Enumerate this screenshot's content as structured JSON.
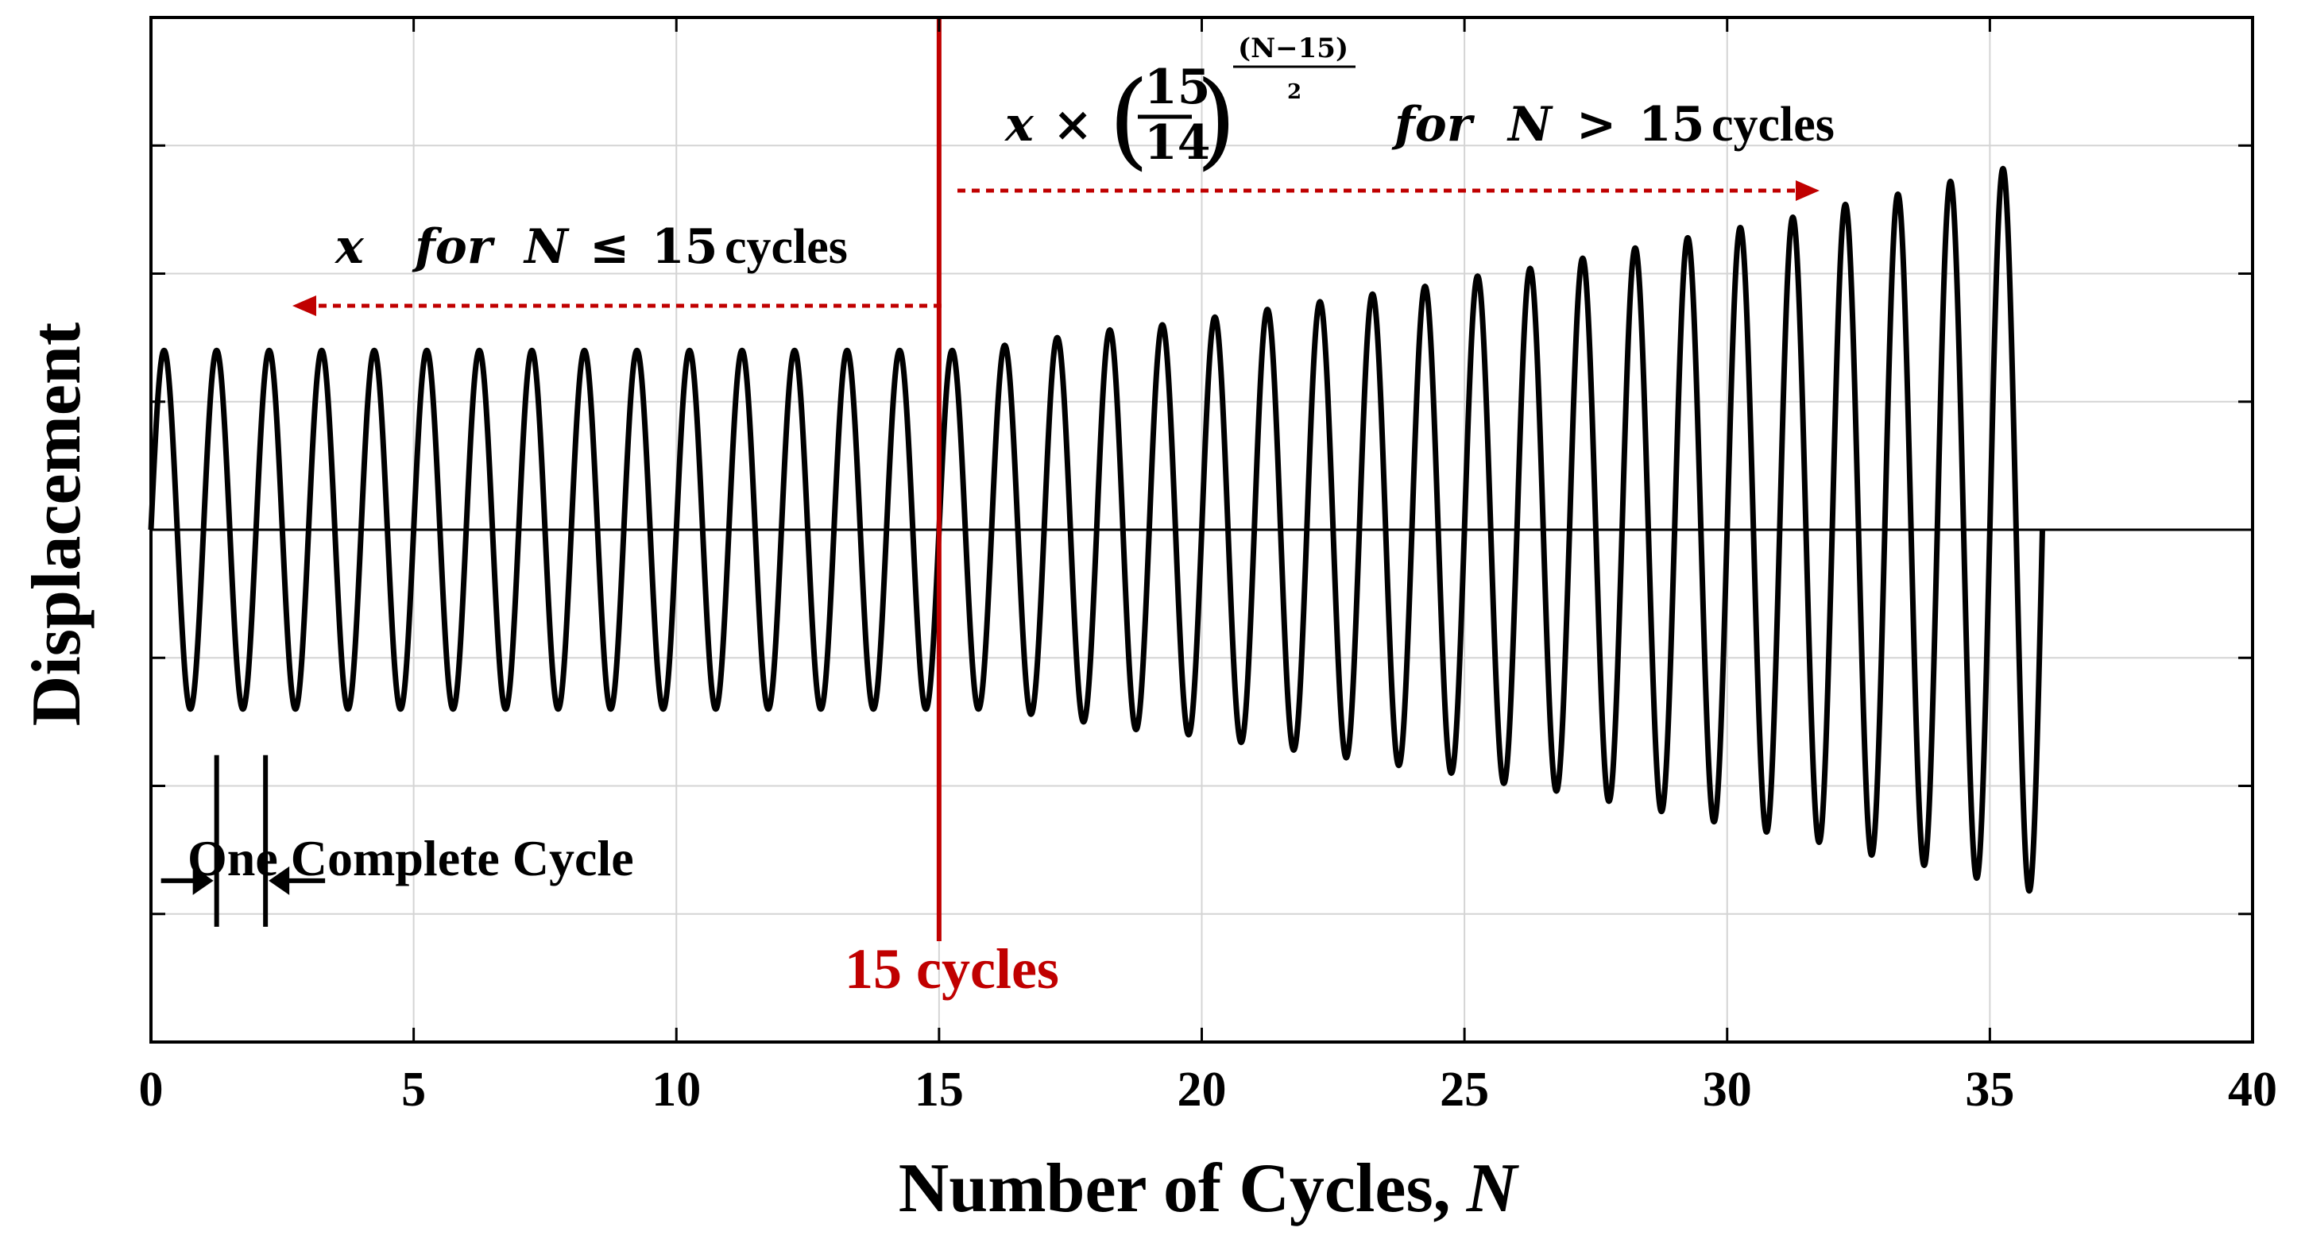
{
  "chart_data": {
    "type": "line",
    "xlabel": "Number of Cycles,",
    "xlabel_var": "N",
    "ylabel": "Displacement",
    "xlim": [
      0,
      40
    ],
    "ylim": [
      -2,
      2
    ],
    "x_ticks": [
      0,
      5,
      10,
      15,
      20,
      25,
      30,
      35,
      40
    ],
    "x_tick_labels": [
      "0",
      "5",
      "10",
      "15",
      "20",
      "25",
      "30",
      "35",
      "40"
    ],
    "y_grid_values": [
      -1.5,
      -1.0,
      -0.5,
      0.0,
      0.5,
      1.0,
      1.5
    ],
    "y_tick_labels_shown": false,
    "grid": true,
    "series": [
      {
        "name": "Displacement",
        "color": "#000000",
        "formula_constant_phase": "x for N <= 15 cycles",
        "formula_growth_phase": "x * (15/14)^((N-15)/2) for N > 15 cycles",
        "base_amplitude": 0.7,
        "growth_ratio": 1.0714,
        "n_cycles": 36,
        "switch_cycle": 15,
        "peak_amplitudes_by_cycle": [
          0.7,
          0.7,
          0.7,
          0.7,
          0.7,
          0.7,
          0.7,
          0.7,
          0.7,
          0.7,
          0.7,
          0.7,
          0.7,
          0.7,
          0.7,
          0.7,
          0.72,
          0.75,
          0.78,
          0.8,
          0.83,
          0.86,
          0.89,
          0.92,
          0.95,
          0.99,
          1.02,
          1.06,
          1.1,
          1.14,
          1.18,
          1.22,
          1.27,
          1.31,
          1.36,
          1.41
        ]
      }
    ],
    "switch_line": {
      "x": 15,
      "color": "#c00000",
      "label": "15 cycles"
    },
    "annotations": {
      "left_formula": {
        "x": "x",
        "for": "for",
        "N": "N",
        "op": "≤",
        "num": "15",
        "unit": "cycles"
      },
      "right_formula": {
        "x": "x",
        "times": "×",
        "frac_num": "15",
        "frac_den": "14",
        "exp_num": "(N−15)",
        "exp_den": "2",
        "for": "for",
        "N": "N",
        "op": ">",
        "num": "15",
        "unit": "cycles"
      },
      "cycle_label": "One Complete Cycle"
    }
  }
}
